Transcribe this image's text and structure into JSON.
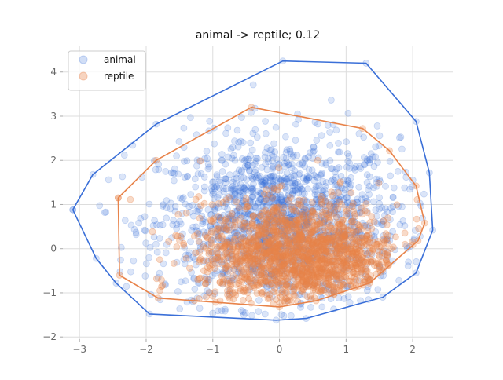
{
  "chart_data": {
    "type": "scatter",
    "title": "animal -> reptile; 0.12",
    "xlabel": "",
    "ylabel": "",
    "xlim": [
      -3.25,
      2.6
    ],
    "ylim": [
      -2.05,
      4.6
    ],
    "x_ticks": [
      -3,
      -2,
      -1,
      0,
      1,
      2
    ],
    "y_ticks": [
      -2,
      -1,
      0,
      1,
      2,
      3,
      4
    ],
    "grid": true,
    "legend_position": "top-left",
    "series": [
      {
        "name": "animal",
        "color": "#3a6fd8",
        "point_alpha": 0.18,
        "cloud": {
          "center": [
            0.0,
            0.6
          ],
          "spread": [
            0.9,
            0.95
          ],
          "count": 1600
        },
        "hull": [
          [
            -3.1,
            0.88
          ],
          [
            -2.8,
            1.68
          ],
          [
            -1.85,
            2.82
          ],
          [
            0.05,
            4.25
          ],
          [
            1.3,
            4.2
          ],
          [
            2.05,
            2.88
          ],
          [
            2.25,
            1.72
          ],
          [
            2.3,
            0.42
          ],
          [
            2.05,
            -0.55
          ],
          [
            1.55,
            -1.1
          ],
          [
            0.4,
            -1.58
          ],
          [
            -0.05,
            -1.62
          ],
          [
            -1.95,
            -1.48
          ],
          [
            -2.45,
            -0.78
          ],
          [
            -2.75,
            -0.22
          ],
          [
            -3.1,
            0.88
          ]
        ]
      },
      {
        "name": "reptile",
        "color": "#e8834a",
        "point_alpha": 0.3,
        "cloud": {
          "center": [
            0.3,
            -0.15
          ],
          "spread": [
            0.75,
            0.6
          ],
          "count": 1600
        },
        "hull": [
          [
            -2.42,
            1.15
          ],
          [
            -1.85,
            2.0
          ],
          [
            -0.42,
            3.2
          ],
          [
            1.25,
            2.72
          ],
          [
            1.65,
            2.22
          ],
          [
            2.05,
            1.42
          ],
          [
            2.18,
            0.58
          ],
          [
            2.08,
            0.18
          ],
          [
            1.35,
            -0.78
          ],
          [
            0.55,
            -1.18
          ],
          [
            0.0,
            -1.32
          ],
          [
            -1.82,
            -1.12
          ],
          [
            -2.4,
            -0.6
          ],
          [
            -2.42,
            1.15
          ]
        ]
      }
    ]
  }
}
